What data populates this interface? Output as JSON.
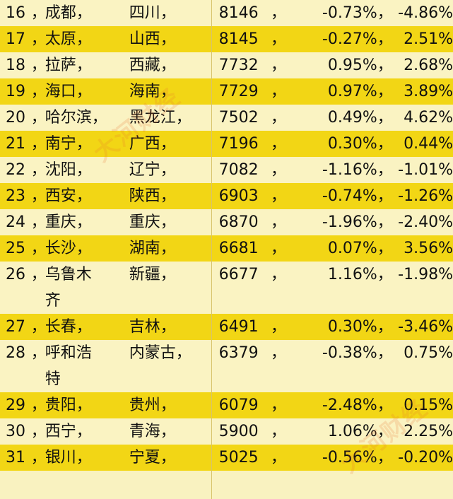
{
  "rows": [
    {
      "rank": "16",
      "city": "成都，",
      "province": "四川，",
      "price": "8146",
      "mom": "-0.73%",
      "yoy": "-4.86%",
      "tone": "pale"
    },
    {
      "rank": "17",
      "city": "太原，",
      "province": "山西，",
      "price": "8145",
      "mom": "-0.27%",
      "yoy": "2.51%",
      "tone": "gold"
    },
    {
      "rank": "18",
      "city": "拉萨，",
      "province": "西藏，",
      "price": "7732",
      "mom": "0.95%",
      "yoy": "2.68%",
      "tone": "pale"
    },
    {
      "rank": "19",
      "city": "海口，",
      "province": "海南，",
      "price": "7729",
      "mom": "0.97%",
      "yoy": "3.89%",
      "tone": "gold"
    },
    {
      "rank": "20",
      "city": "哈尔滨，",
      "province": "黑龙江，",
      "price": "7502",
      "mom": "0.49%",
      "yoy": "4.62%",
      "tone": "pale"
    },
    {
      "rank": "21",
      "city": "南宁，",
      "province": "广西，",
      "price": "7196",
      "mom": "0.30%",
      "yoy": "0.44%",
      "tone": "gold"
    },
    {
      "rank": "22",
      "city": "沈阳，",
      "province": "辽宁，",
      "price": "7082",
      "mom": "-1.16%",
      "yoy": "-1.01%",
      "tone": "pale"
    },
    {
      "rank": "23",
      "city": "西安，",
      "province": "陕西，",
      "price": "6903",
      "mom": "-0.74%",
      "yoy": "-1.26%",
      "tone": "gold"
    },
    {
      "rank": "24",
      "city": "重庆，",
      "province": "重庆，",
      "price": "6870",
      "mom": "-1.96%",
      "yoy": "-2.40%",
      "tone": "pale"
    },
    {
      "rank": "25",
      "city": "长沙，",
      "province": "湖南，",
      "price": "6681",
      "mom": "0.07%",
      "yoy": "3.56%",
      "tone": "gold"
    },
    {
      "rank": "26",
      "city": "乌鲁木",
      "province": "新疆，",
      "price": "6677",
      "mom": "1.16%",
      "yoy": "-1.98%",
      "tone": "pale",
      "city_line2": "齐"
    },
    {
      "rank": "27",
      "city": "长春，",
      "province": "吉林，",
      "price": "6491",
      "mom": "0.30%",
      "yoy": "-3.46%",
      "tone": "gold"
    },
    {
      "rank": "28",
      "city": "呼和浩",
      "province": "内蒙古，",
      "price": "6379",
      "mom": "-0.38%",
      "yoy": "0.75%",
      "tone": "pale",
      "city_line2": "特"
    },
    {
      "rank": "29",
      "city": "贵阳，",
      "province": "贵州，",
      "price": "6079",
      "mom": "-2.48%",
      "yoy": "0.15%",
      "tone": "gold"
    },
    {
      "rank": "30",
      "city": "西宁，",
      "province": "青海，",
      "price": "5900",
      "mom": "1.06%",
      "yoy": "2.25%",
      "tone": "pale"
    },
    {
      "rank": "31",
      "city": "银川，",
      "province": "宁夏，",
      "price": "5025",
      "mom": "-0.56%",
      "yoy": "-0.20%",
      "tone": "gold"
    }
  ],
  "separator": "，",
  "watermark": "大河财经"
}
